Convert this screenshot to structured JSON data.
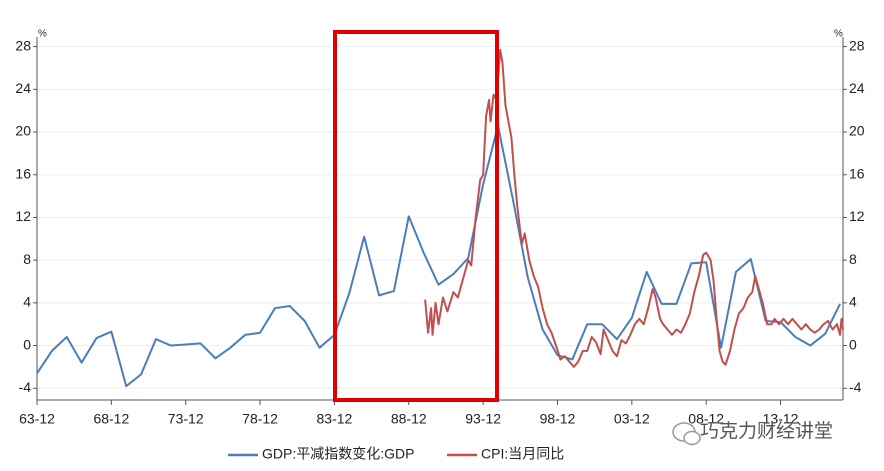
{
  "chart_data": {
    "type": "line",
    "ylabel": "%",
    "y2label": "%",
    "xlim": [
      1963,
      2017.2
    ],
    "xticks": [
      {
        "value": 1963,
        "label": "63-12"
      },
      {
        "value": 1968,
        "label": "68-12"
      },
      {
        "value": 1973,
        "label": "73-12"
      },
      {
        "value": 1978,
        "label": "78-12"
      },
      {
        "value": 1983,
        "label": "83-12"
      },
      {
        "value": 1988,
        "label": "88-12"
      },
      {
        "value": 1993,
        "label": "93-12"
      },
      {
        "value": 1998,
        "label": "98-12"
      },
      {
        "value": 2003,
        "label": "03-12"
      },
      {
        "value": 2008,
        "label": "08-12"
      },
      {
        "value": 2013,
        "label": "13-12"
      }
    ],
    "ylim": [
      -5.1,
      28.9
    ],
    "yticks": [
      -4,
      0,
      4,
      8,
      12,
      16,
      20,
      24,
      28
    ],
    "y2lim": [
      -5.1,
      28.9
    ],
    "y2ticks": [
      -4,
      0,
      4,
      8,
      12,
      16,
      20,
      24,
      28
    ],
    "grid": true,
    "watermark": "巧克力财经讲堂",
    "series": [
      {
        "name": "GDP:平减指数变化:GDP",
        "color": "#4a7ebb",
        "x": [
          1963,
          1964,
          1965,
          1966,
          1967,
          1968,
          1969,
          1970,
          1971,
          1972,
          1973,
          1974,
          1975,
          1976,
          1977,
          1978,
          1979,
          1980,
          1981,
          1982,
          1983,
          1984,
          1985,
          1986,
          1987,
          1988,
          1989,
          1990,
          1991,
          1992,
          1993,
          1994,
          1995,
          1996,
          1997,
          1998,
          1999,
          2000,
          2001,
          2002,
          2003,
          2004,
          2005,
          2006,
          2007,
          2008,
          2009,
          2010,
          2011,
          2012,
          2013,
          2014,
          2015,
          2016,
          2017
        ],
        "values": [
          -2.6,
          -0.5,
          0.8,
          -1.6,
          0.7,
          1.3,
          -3.8,
          -2.7,
          0.6,
          0.0,
          0.1,
          0.2,
          -1.2,
          -0.2,
          1.0,
          1.2,
          3.5,
          3.7,
          2.3,
          -0.2,
          1.0,
          4.9,
          10.2,
          4.7,
          5.1,
          12.1,
          8.7,
          5.7,
          6.7,
          8.2,
          15.1,
          20.6,
          13.7,
          6.4,
          1.5,
          -0.9,
          -1.3,
          2.0,
          2.0,
          0.6,
          2.6,
          6.9,
          3.9,
          3.9,
          7.7,
          7.8,
          -0.2,
          6.9,
          8.1,
          2.3,
          2.2,
          0.8,
          0.0,
          1.1,
          3.9
        ]
      },
      {
        "name": "CPI:当月同比",
        "color": "#c0504d",
        "axis": "y2",
        "x": [
          1989.1,
          1989.3,
          1989.5,
          1989.6,
          1989.8,
          1990.0,
          1990.3,
          1990.6,
          1991.0,
          1991.3,
          1991.6,
          1992.0,
          1992.2,
          1992.5,
          1992.8,
          1993.0,
          1993.2,
          1993.4,
          1993.5,
          1993.7,
          1993.9,
          1994.0,
          1994.15,
          1994.3,
          1994.5,
          1994.7,
          1994.9,
          1995.1,
          1995.3,
          1995.6,
          1995.8,
          1996.1,
          1996.4,
          1996.7,
          1997.0,
          1997.3,
          1997.6,
          1997.9,
          1998.2,
          1998.5,
          1998.8,
          1999.1,
          1999.4,
          1999.7,
          2000.0,
          2000.3,
          2000.6,
          2000.9,
          2001.1,
          2001.4,
          2001.7,
          2002.0,
          2002.3,
          2002.6,
          2002.9,
          2003.2,
          2003.5,
          2003.8,
          2004.1,
          2004.4,
          2004.6,
          2004.9,
          2005.1,
          2005.4,
          2005.7,
          2006.0,
          2006.3,
          2006.6,
          2006.9,
          2007.2,
          2007.5,
          2007.8,
          2008.0,
          2008.3,
          2008.5,
          2008.7,
          2008.9,
          2009.1,
          2009.3,
          2009.6,
          2009.9,
          2010.2,
          2010.5,
          2010.8,
          2011.1,
          2011.3,
          2011.5,
          2011.8,
          2012.1,
          2012.4,
          2012.6,
          2012.9,
          2013.2,
          2013.5,
          2013.8,
          2014.1,
          2014.4,
          2014.7,
          2015.0,
          2015.3,
          2015.6,
          2015.9,
          2016.2,
          2016.5,
          2016.8,
          2017.0,
          2017.1,
          2017.2
        ],
        "values": [
          4.3,
          1.2,
          3.5,
          1.0,
          4.0,
          2.0,
          4.5,
          3.2,
          5.0,
          4.5,
          6.0,
          8.0,
          7.5,
          12.0,
          15.5,
          16.0,
          21.5,
          23.0,
          21.0,
          23.5,
          23.0,
          25.0,
          27.7,
          26.5,
          22.5,
          21.0,
          19.5,
          16.0,
          13.0,
          9.5,
          10.5,
          8.0,
          6.5,
          5.5,
          3.5,
          2.0,
          1.2,
          0.0,
          -1.3,
          -1.0,
          -1.5,
          -2.0,
          -1.5,
          -0.5,
          -0.5,
          0.8,
          0.3,
          -0.8,
          1.5,
          0.5,
          -0.5,
          -1.0,
          0.5,
          0.2,
          1.0,
          2.0,
          2.5,
          2.0,
          3.5,
          5.3,
          4.5,
          2.5,
          2.0,
          1.5,
          1.0,
          1.5,
          1.2,
          2.0,
          3.0,
          5.0,
          6.5,
          8.5,
          8.7,
          8.0,
          6.0,
          2.5,
          -0.5,
          -1.5,
          -1.8,
          -0.5,
          1.5,
          3.0,
          3.5,
          4.5,
          5.0,
          6.5,
          5.5,
          4.0,
          2.0,
          2.0,
          2.5,
          2.0,
          2.5,
          2.0,
          2.5,
          2.0,
          1.5,
          2.0,
          1.5,
          1.2,
          1.5,
          2.0,
          2.3,
          1.5,
          2.0,
          1.0,
          2.5,
          1.5
        ]
      }
    ]
  }
}
